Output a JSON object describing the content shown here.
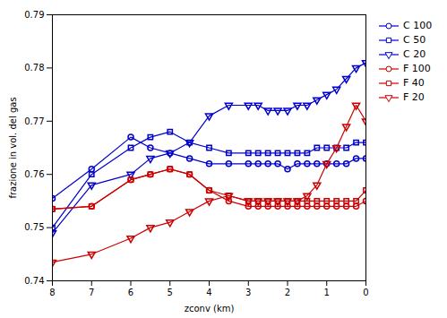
{
  "chart_data": {
    "type": "line",
    "xlabel": "zconv (km)",
    "ylabel": "frazione in vol. del gas",
    "xlim": [
      8,
      0
    ],
    "ylim": [
      0.74,
      0.79
    ],
    "xticks": [
      8,
      7,
      6,
      5,
      4,
      3,
      2,
      1,
      0
    ],
    "yticks": [
      0.74,
      0.75,
      0.76,
      0.77,
      0.78,
      0.79
    ],
    "grid": false,
    "legend": "upper right",
    "x": [
      8,
      7,
      6,
      5.5,
      5,
      4.5,
      4,
      3.5,
      3,
      2.75,
      2.5,
      2.25,
      2,
      1.75,
      1.5,
      1.25,
      1,
      0.75,
      0.5,
      0.25,
      0
    ],
    "series": [
      {
        "name": "C 100",
        "color": "#0000cc",
        "marker": "circle",
        "values": [
          0.7555,
          0.761,
          0.767,
          0.765,
          0.764,
          0.763,
          0.762,
          0.762,
          0.762,
          0.762,
          0.762,
          0.762,
          0.761,
          0.762,
          0.762,
          0.762,
          0.762,
          0.762,
          0.762,
          0.763,
          0.763
        ]
      },
      {
        "name": "C 50",
        "color": "#0000cc",
        "marker": "square",
        "values": [
          0.75,
          0.76,
          0.765,
          0.767,
          0.768,
          0.766,
          0.765,
          0.764,
          0.764,
          0.764,
          0.764,
          0.764,
          0.764,
          0.764,
          0.764,
          0.765,
          0.765,
          0.765,
          0.765,
          0.766,
          0.766
        ]
      },
      {
        "name": "C 20",
        "color": "#0000cc",
        "marker": "triangle-down",
        "values": [
          0.749,
          0.758,
          0.76,
          0.763,
          0.764,
          0.766,
          0.771,
          0.773,
          0.773,
          0.773,
          0.772,
          0.772,
          0.772,
          0.773,
          0.773,
          0.774,
          0.775,
          0.776,
          0.778,
          0.78,
          0.781
        ]
      },
      {
        "name": "F 100",
        "color": "#cc0000",
        "marker": "circle",
        "values": [
          0.7535,
          0.754,
          0.759,
          0.76,
          0.761,
          0.76,
          0.757,
          0.755,
          0.754,
          0.754,
          0.754,
          0.754,
          0.754,
          0.754,
          0.754,
          0.754,
          0.754,
          0.754,
          0.754,
          0.754,
          0.755
        ]
      },
      {
        "name": "F 40",
        "color": "#cc0000",
        "marker": "square",
        "values": [
          0.7535,
          0.754,
          0.759,
          0.76,
          0.761,
          0.76,
          0.757,
          0.756,
          0.755,
          0.755,
          0.755,
          0.755,
          0.755,
          0.755,
          0.755,
          0.755,
          0.755,
          0.755,
          0.755,
          0.755,
          0.757
        ]
      },
      {
        "name": "F 20",
        "color": "#cc0000",
        "marker": "triangle-down",
        "values": [
          0.7435,
          0.745,
          0.748,
          0.75,
          0.751,
          0.753,
          0.755,
          0.756,
          0.755,
          0.755,
          0.755,
          0.755,
          0.755,
          0.755,
          0.756,
          0.758,
          0.762,
          0.765,
          0.769,
          0.773,
          0.77
        ]
      }
    ]
  }
}
